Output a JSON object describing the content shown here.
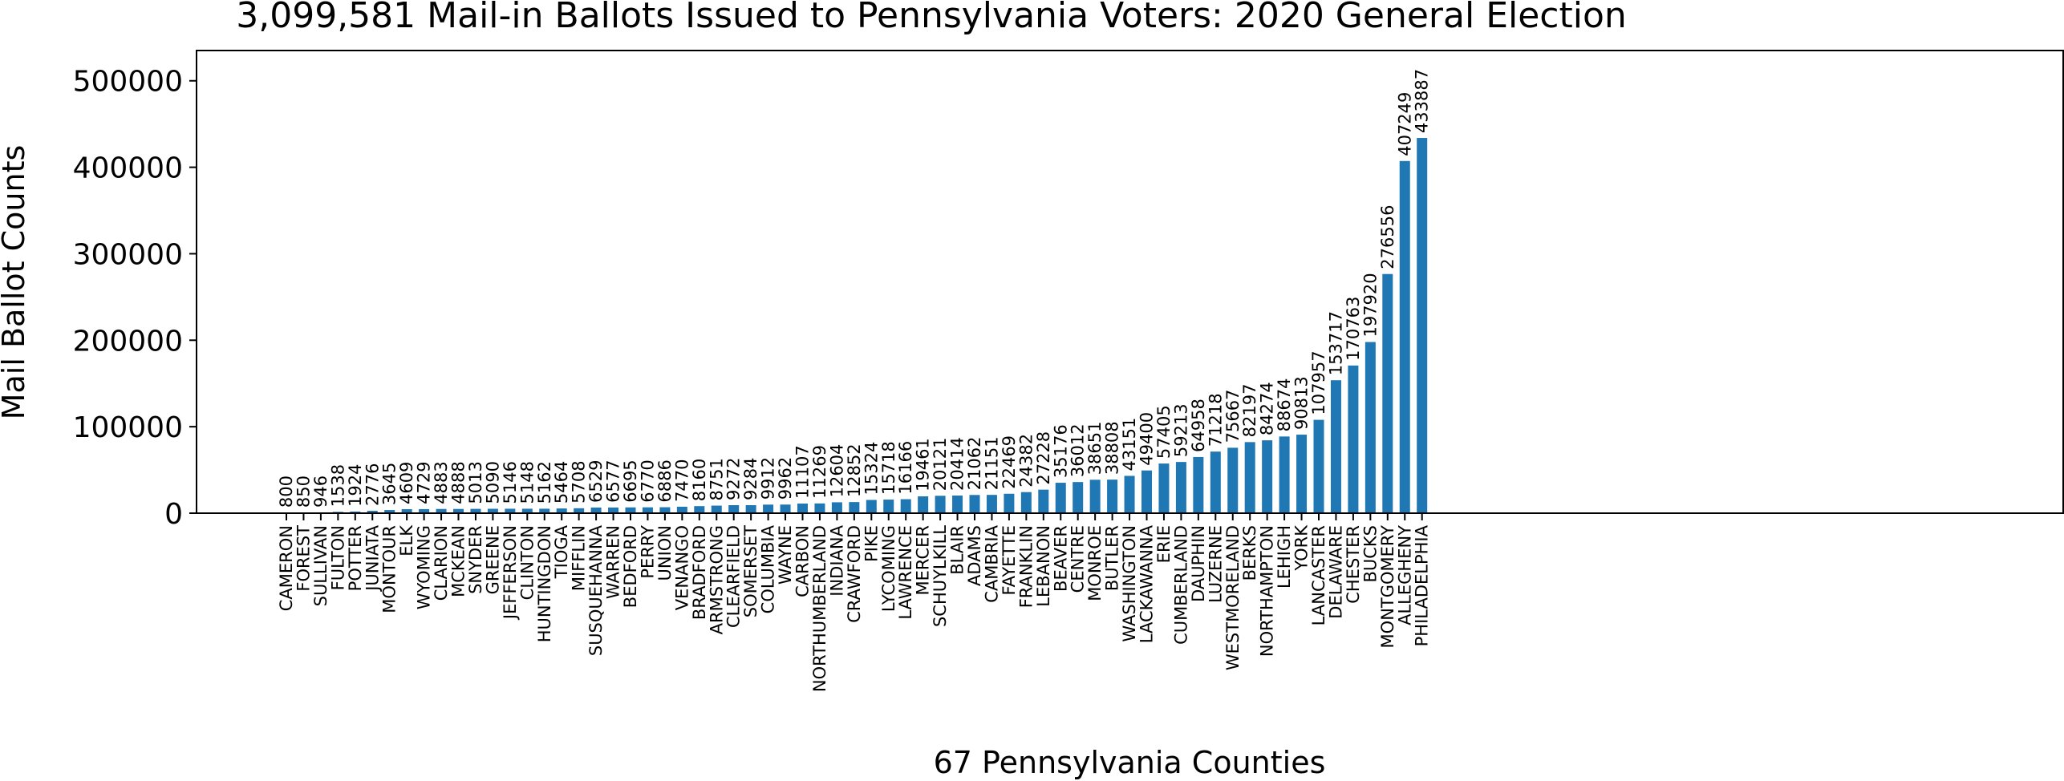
{
  "chart_data": {
    "type": "bar",
    "title": "3,099,581 Mail-in Ballots Issued to Pennsylvania Voters: 2020 General Election",
    "xlabel": "67 Pennsylvania Counties",
    "ylabel": "Mail Ballot Counts",
    "ylim": [
      0,
      535000
    ],
    "yticks": [
      0,
      100000,
      200000,
      300000,
      400000,
      500000
    ],
    "grid": false,
    "bar_color": "#1f77b4",
    "categories": [
      "CAMERON",
      "FOREST",
      "SULLIVAN",
      "FULTON",
      "POTTER",
      "JUNIATA",
      "MONTOUR",
      "ELK",
      "WYOMING",
      "CLARION",
      "MCKEAN",
      "SNYDER",
      "GREENE",
      "JEFFERSON",
      "CLINTON",
      "HUNTINGDON",
      "TIOGA",
      "MIFFLIN",
      "SUSQUEHANNA",
      "WARREN",
      "BEDFORD",
      "PERRY",
      "UNION",
      "VENANGO",
      "BRADFORD",
      "ARMSTRONG",
      "CLEARFIELD",
      "SOMERSET",
      "COLUMBIA",
      "WAYNE",
      "CARBON",
      "NORTHUMBERLAND",
      "INDIANA",
      "CRAWFORD",
      "PIKE",
      "LYCOMING",
      "LAWRENCE",
      "MERCER",
      "SCHUYLKILL",
      "BLAIR",
      "ADAMS",
      "CAMBRIA",
      "FAYETTE",
      "FRANKLIN",
      "LEBANON",
      "BEAVER",
      "CENTRE",
      "MONROE",
      "BUTLER",
      "WASHINGTON",
      "LACKAWANNA",
      "ERIE",
      "CUMBERLAND",
      "DAUPHIN",
      "LUZERNE",
      "WESTMORELAND",
      "BERKS",
      "NORTHAMPTON",
      "LEHIGH",
      "YORK",
      "LANCASTER",
      "DELAWARE",
      "CHESTER",
      "BUCKS",
      "MONTGOMERY",
      "ALLEGHENY",
      "PHILADELPHIA"
    ],
    "values": [
      800,
      850,
      946,
      1538,
      1924,
      2776,
      3645,
      4609,
      4729,
      4883,
      4888,
      5013,
      5090,
      5146,
      5148,
      5162,
      5464,
      5708,
      6529,
      6577,
      6695,
      6770,
      6886,
      7470,
      8160,
      8751,
      9272,
      9284,
      9912,
      9962,
      11107,
      11269,
      12604,
      12852,
      15324,
      15718,
      16166,
      19461,
      20121,
      20414,
      21062,
      21151,
      22469,
      24382,
      27228,
      35176,
      36012,
      38651,
      38808,
      43151,
      49400,
      57405,
      59213,
      64958,
      71218,
      75667,
      82197,
      84274,
      88674,
      90813,
      107957,
      153717,
      170763,
      197920,
      276556,
      407249,
      433887
    ]
  }
}
